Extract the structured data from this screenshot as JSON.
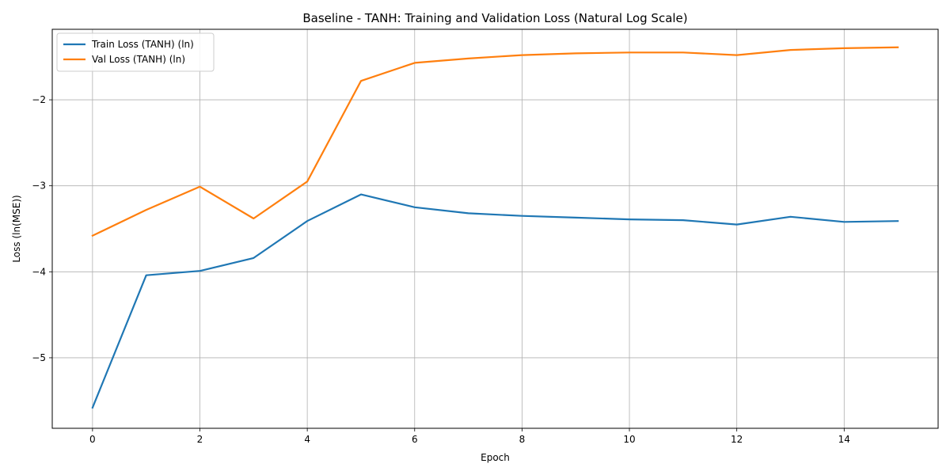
{
  "chart_data": {
    "type": "line",
    "title": "Baseline - TANH: Training and Validation Loss (Natural Log Scale)",
    "xlabel": "Epoch",
    "ylabel": "Loss (ln(MSE))",
    "x": [
      0,
      1,
      2,
      3,
      4,
      5,
      6,
      7,
      8,
      9,
      10,
      11,
      12,
      13,
      14,
      15
    ],
    "xlim": [
      -0.75,
      15.75
    ],
    "ylim": [
      -5.82,
      -1.18
    ],
    "xticks": [
      0,
      2,
      4,
      6,
      8,
      10,
      12,
      14
    ],
    "xtick_labels": [
      "0",
      "2",
      "4",
      "6",
      "8",
      "10",
      "12",
      "14"
    ],
    "yticks": [
      -5,
      -4,
      -3,
      -2
    ],
    "ytick_labels": [
      "−5",
      "−4",
      "−3",
      "−2"
    ],
    "grid": true,
    "legend_position": "top-left",
    "series": [
      {
        "name": "Train Loss (TANH) (ln)",
        "color": "#1f77b4",
        "values": [
          -5.58,
          -4.04,
          -3.99,
          -3.84,
          -3.41,
          -3.1,
          -3.25,
          -3.32,
          -3.35,
          -3.37,
          -3.39,
          -3.4,
          -3.45,
          -3.36,
          -3.42,
          -3.41
        ]
      },
      {
        "name": "Val Loss (TANH) (ln)",
        "color": "#ff7f0e",
        "values": [
          -3.58,
          -3.28,
          -3.01,
          -3.38,
          -2.95,
          -1.78,
          -1.57,
          -1.52,
          -1.48,
          -1.46,
          -1.45,
          -1.45,
          -1.48,
          -1.42,
          -1.4,
          -1.39
        ]
      }
    ]
  }
}
